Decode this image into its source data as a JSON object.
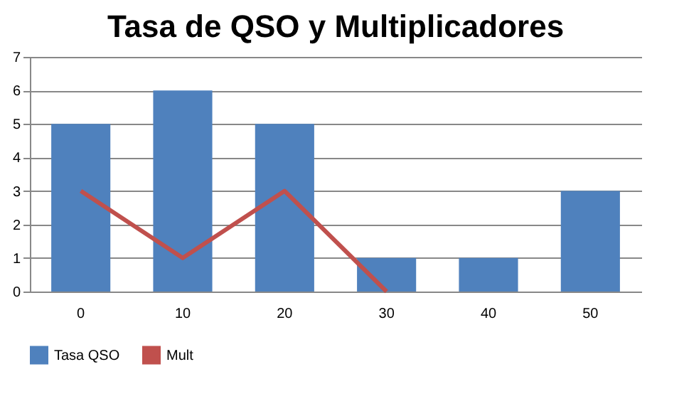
{
  "chart_data": {
    "type": "bar",
    "title": "Tasa de QSO y Multiplicadores",
    "categories": [
      "0",
      "10",
      "20",
      "30",
      "40",
      "50"
    ],
    "series": [
      {
        "name": "Tasa QSO",
        "color": "#4f81bd",
        "values": [
          5,
          6,
          5,
          1,
          1,
          3
        ]
      },
      {
        "name": "Mult",
        "type": "line",
        "color": "#c0504d",
        "values": [
          3,
          1,
          3,
          0,
          null,
          null
        ]
      }
    ],
    "ylim": [
      0,
      7
    ],
    "yticks": [
      0,
      1,
      2,
      3,
      4,
      5,
      6,
      7
    ],
    "grid": "y",
    "legend": "bottom",
    "marker": "none"
  }
}
